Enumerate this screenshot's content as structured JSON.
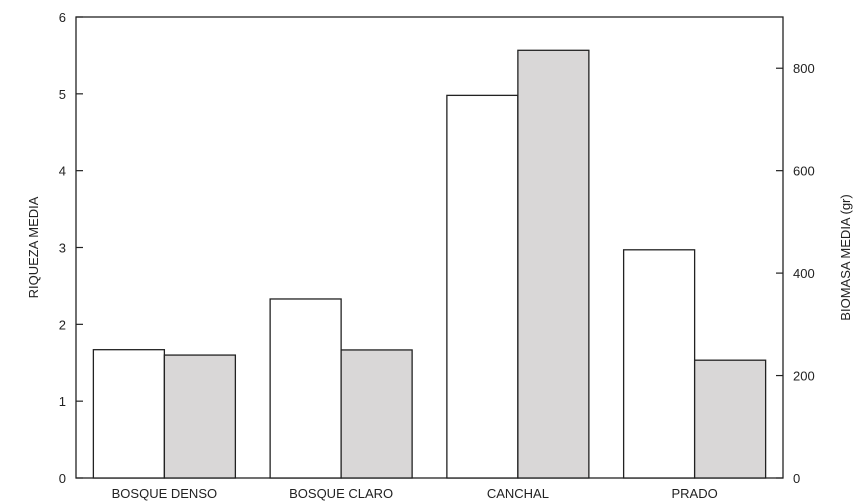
{
  "chart_data": {
    "type": "bar",
    "categories": [
      "BOSQUE DENSO",
      "BOSQUE CLARO",
      "CANCHAL",
      "PRADO"
    ],
    "series": [
      {
        "values": [
          1.67,
          2.33,
          4.98,
          2.97
        ],
        "axis": "left",
        "color": "#ffffff"
      },
      {
        "values": [
          240,
          250,
          835,
          230
        ],
        "axis": "right",
        "color": "#d9d7d7"
      }
    ],
    "ylabel": "RIQUEZA MEDIA",
    "ylabel_right": "BIOMASA MEDIA (gr)",
    "ylim": [
      0,
      6
    ],
    "ylim_right": [
      0,
      900
    ],
    "yticks": [
      "0",
      "1",
      "2",
      "3",
      "4",
      "5",
      "6"
    ],
    "yticks_right": [
      "0",
      "200",
      "400",
      "600",
      "800"
    ],
    "grid": false,
    "legend": "none"
  }
}
